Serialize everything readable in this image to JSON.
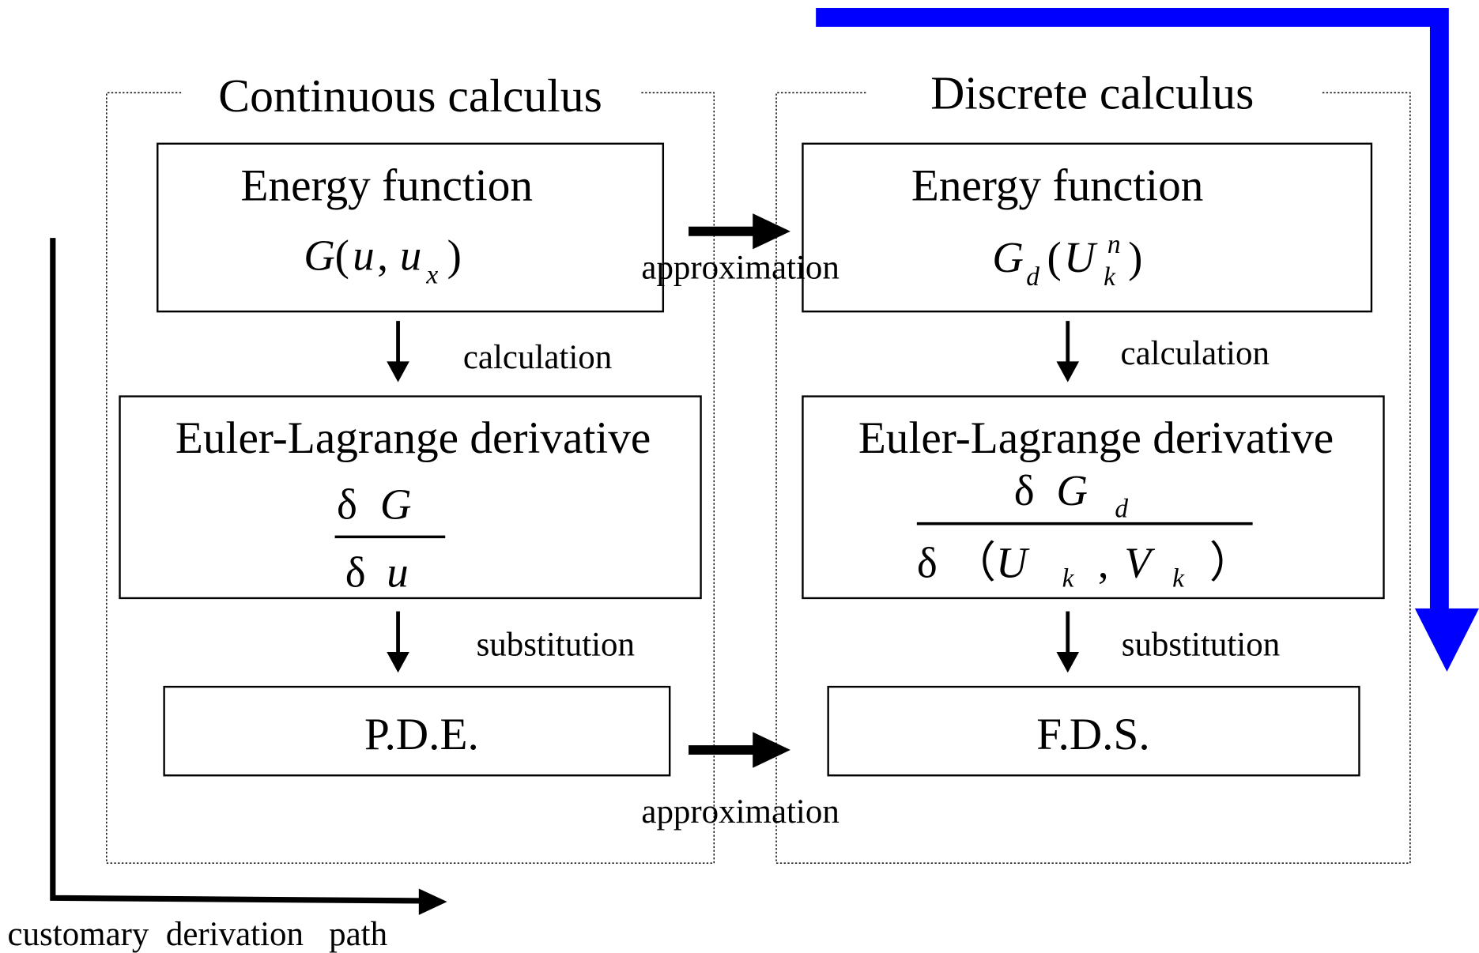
{
  "panels": [
    {
      "title": "Continuous calculus",
      "nodes": [
        {
          "label": "Energy function",
          "formula": [
            "G",
            "(",
            "u",
            ",",
            "u",
            "x",
            ")"
          ]
        },
        {
          "label": "Euler-Lagrange derivative",
          "formula": [
            "δ",
            "G",
            "δ",
            "u"
          ]
        },
        {
          "label": "P.D.E."
        }
      ],
      "edges": [
        "calculation",
        "substitution"
      ]
    },
    {
      "title": "Discrete calculus",
      "nodes": [
        {
          "label": "Energy function",
          "formula": [
            "G",
            "d",
            "(",
            "U",
            "n",
            "k",
            ")"
          ]
        },
        {
          "label": "Euler-Lagrange derivative",
          "formula": [
            "δ",
            "G",
            "d",
            "δ",
            "（",
            "U",
            "k",
            ",",
            "V",
            "k",
            "）"
          ]
        },
        {
          "label": "F.D.S."
        }
      ],
      "edges": [
        "calculation",
        "substitution"
      ]
    }
  ],
  "approximations": [
    "approximation",
    "approximation"
  ],
  "path_label": "customary  derivation   path"
}
